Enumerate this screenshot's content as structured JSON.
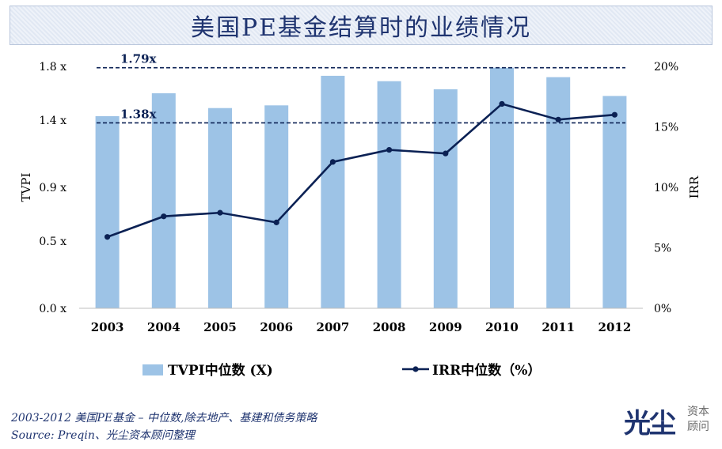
{
  "title": "美国PE基金结算时的业绩情况",
  "chart_data": {
    "type": "bar",
    "categories": [
      "2003",
      "2004",
      "2005",
      "2006",
      "2007",
      "2008",
      "2009",
      "2010",
      "2011",
      "2012"
    ],
    "series": [
      {
        "name": "TVPI中位数 (X)",
        "type": "bar",
        "axis": "left",
        "values": [
          1.43,
          1.6,
          1.49,
          1.51,
          1.73,
          1.69,
          1.63,
          1.79,
          1.72,
          1.58
        ],
        "color": "#9dc3e6"
      },
      {
        "name": "IRR中位数（%）",
        "type": "line",
        "axis": "right",
        "values": [
          5.9,
          7.6,
          7.9,
          7.1,
          12.1,
          13.1,
          12.8,
          16.9,
          15.6,
          16.0
        ],
        "color": "#0b2154"
      }
    ],
    "reference_lines": [
      {
        "value": 1.79,
        "label": "1.79x"
      },
      {
        "value": 1.38,
        "label": "1.38x"
      }
    ],
    "left_axis": {
      "label": "TVPI",
      "ticks": [
        "0.0 x",
        "0.5 x",
        "0.9 x",
        "1.4 x",
        "1.8 x"
      ],
      "ylim": [
        0,
        1.8
      ]
    },
    "right_axis": {
      "label": "IRR",
      "ticks": [
        "0%",
        "5%",
        "10%",
        "15%",
        "20%"
      ],
      "ylim": [
        0,
        20
      ]
    },
    "grid": false,
    "legend_position": "bottom"
  },
  "source_lines": [
    "2003-2012 美国PE基金 – 中位数,除去地产、基建和债务策略",
    "Source: Preqin、光尘资本顾问整理"
  ],
  "logo": {
    "main": "光尘",
    "sub1": "资本",
    "sub2": "顾问"
  }
}
